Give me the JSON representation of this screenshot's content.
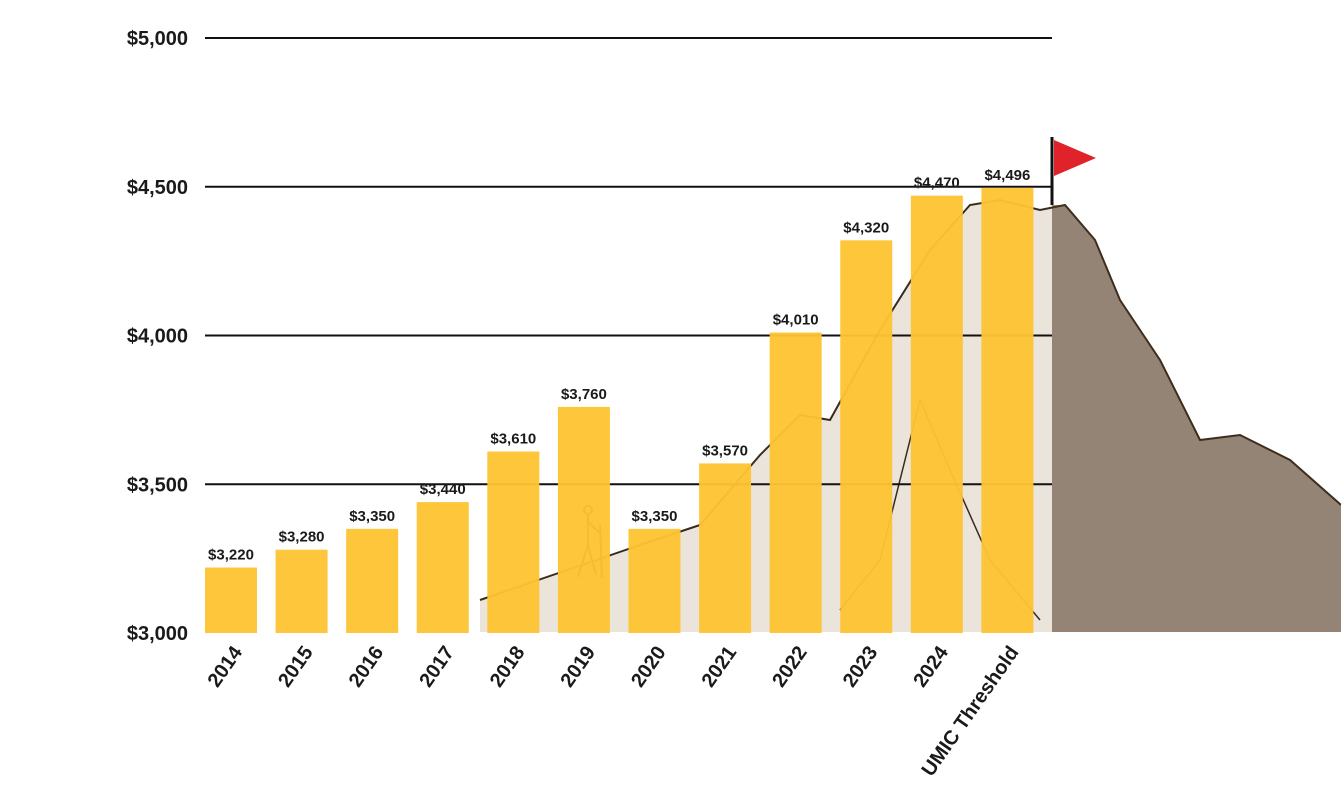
{
  "chart_data": {
    "type": "bar",
    "title": "",
    "xlabel": "",
    "ylabel": "",
    "categories": [
      "2014",
      "2015",
      "2016",
      "2017",
      "2018",
      "2019",
      "2020",
      "2021",
      "2022",
      "2023",
      "2024",
      "UMIC Threshold"
    ],
    "values": [
      3220,
      3280,
      3350,
      3440,
      3610,
      3760,
      3350,
      3570,
      4010,
      4320,
      4470,
      4496
    ],
    "data_labels": [
      "$3,220",
      "$3,280",
      "$3,350",
      "$3,440",
      "$3,610",
      "$3,760",
      "$3,350",
      "$3,570",
      "$4,010",
      "$4,320",
      "$4,470",
      "$4,496"
    ],
    "ylim": [
      3000,
      5000
    ],
    "yticks": [
      3000,
      3500,
      4000,
      4500,
      5000
    ],
    "ytick_labels": [
      "$3,000",
      "$3,500",
      "$4,000",
      "$4,500",
      "$5,000"
    ],
    "grid": "horizontal",
    "bar_color": "#FDC433",
    "flag_color": "#E0232A",
    "mountain_color": "#3B2A1A"
  }
}
